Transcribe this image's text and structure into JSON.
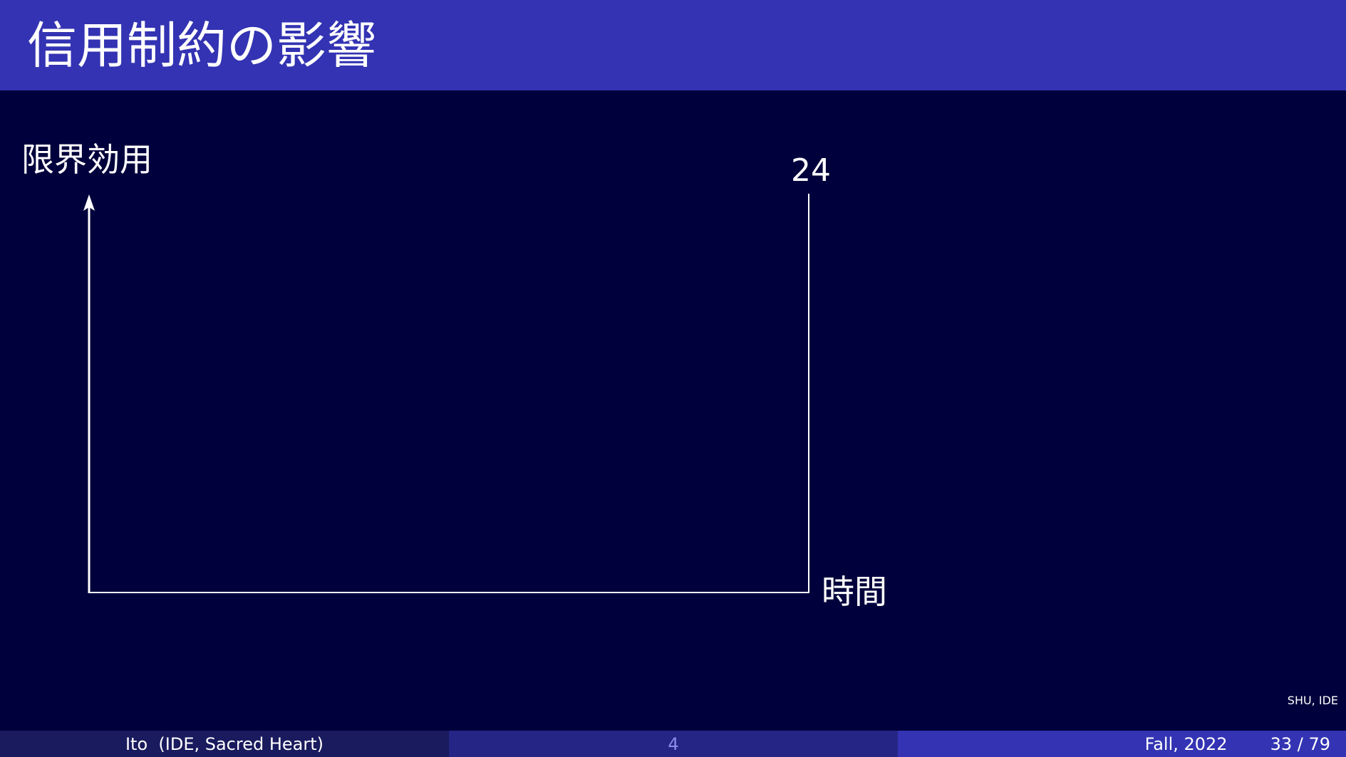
{
  "slide": {
    "title": "信用制約の影響",
    "institution_tag": "SHU, IDE"
  },
  "diagram": {
    "y_axis_label": "限界効用",
    "x_axis_label": "時間",
    "vertical_line_label": "24"
  },
  "footer": {
    "author": "Ito  (IDE, Sacred Heart)",
    "section": "4",
    "date": "Fall, 2022",
    "page": "33 / 79"
  },
  "colors": {
    "background": "#00003c",
    "header": "#3333b3",
    "footer_left": "#1a1a5e",
    "footer_middle": "#252585",
    "footer_right": "#3333b3",
    "foreground": "#ffffff"
  }
}
